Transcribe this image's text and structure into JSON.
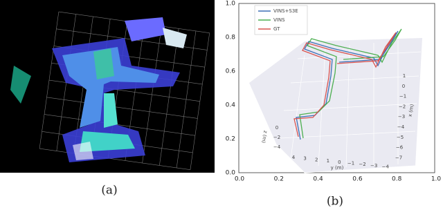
{
  "panel_a": {
    "label": "(a)"
  },
  "panel_b": {
    "label": "(b)",
    "legend": [
      "VINS+S3E",
      "VINS",
      "GT"
    ],
    "outer_xticks": [
      "0.0",
      "0.2",
      "0.4",
      "0.6",
      "0.8",
      "1.0"
    ],
    "outer_yticks": [
      "0.0",
      "0.2",
      "0.4",
      "0.6",
      "0.8",
      "1.0"
    ],
    "y_axis": {
      "label": "y (m)",
      "ticks": [
        "4",
        "3",
        "2",
        "1",
        "0",
        "−1",
        "−2",
        "−3",
        "−4"
      ]
    },
    "x_axis": {
      "label": "x (m)",
      "ticks": [
        "1",
        "0",
        "−1",
        "−2",
        "−3",
        "−4",
        "−5",
        "−6",
        "−7"
      ]
    },
    "z_axis": {
      "label": "z (m)",
      "ticks": [
        "0",
        "−2",
        "−4"
      ]
    }
  }
}
